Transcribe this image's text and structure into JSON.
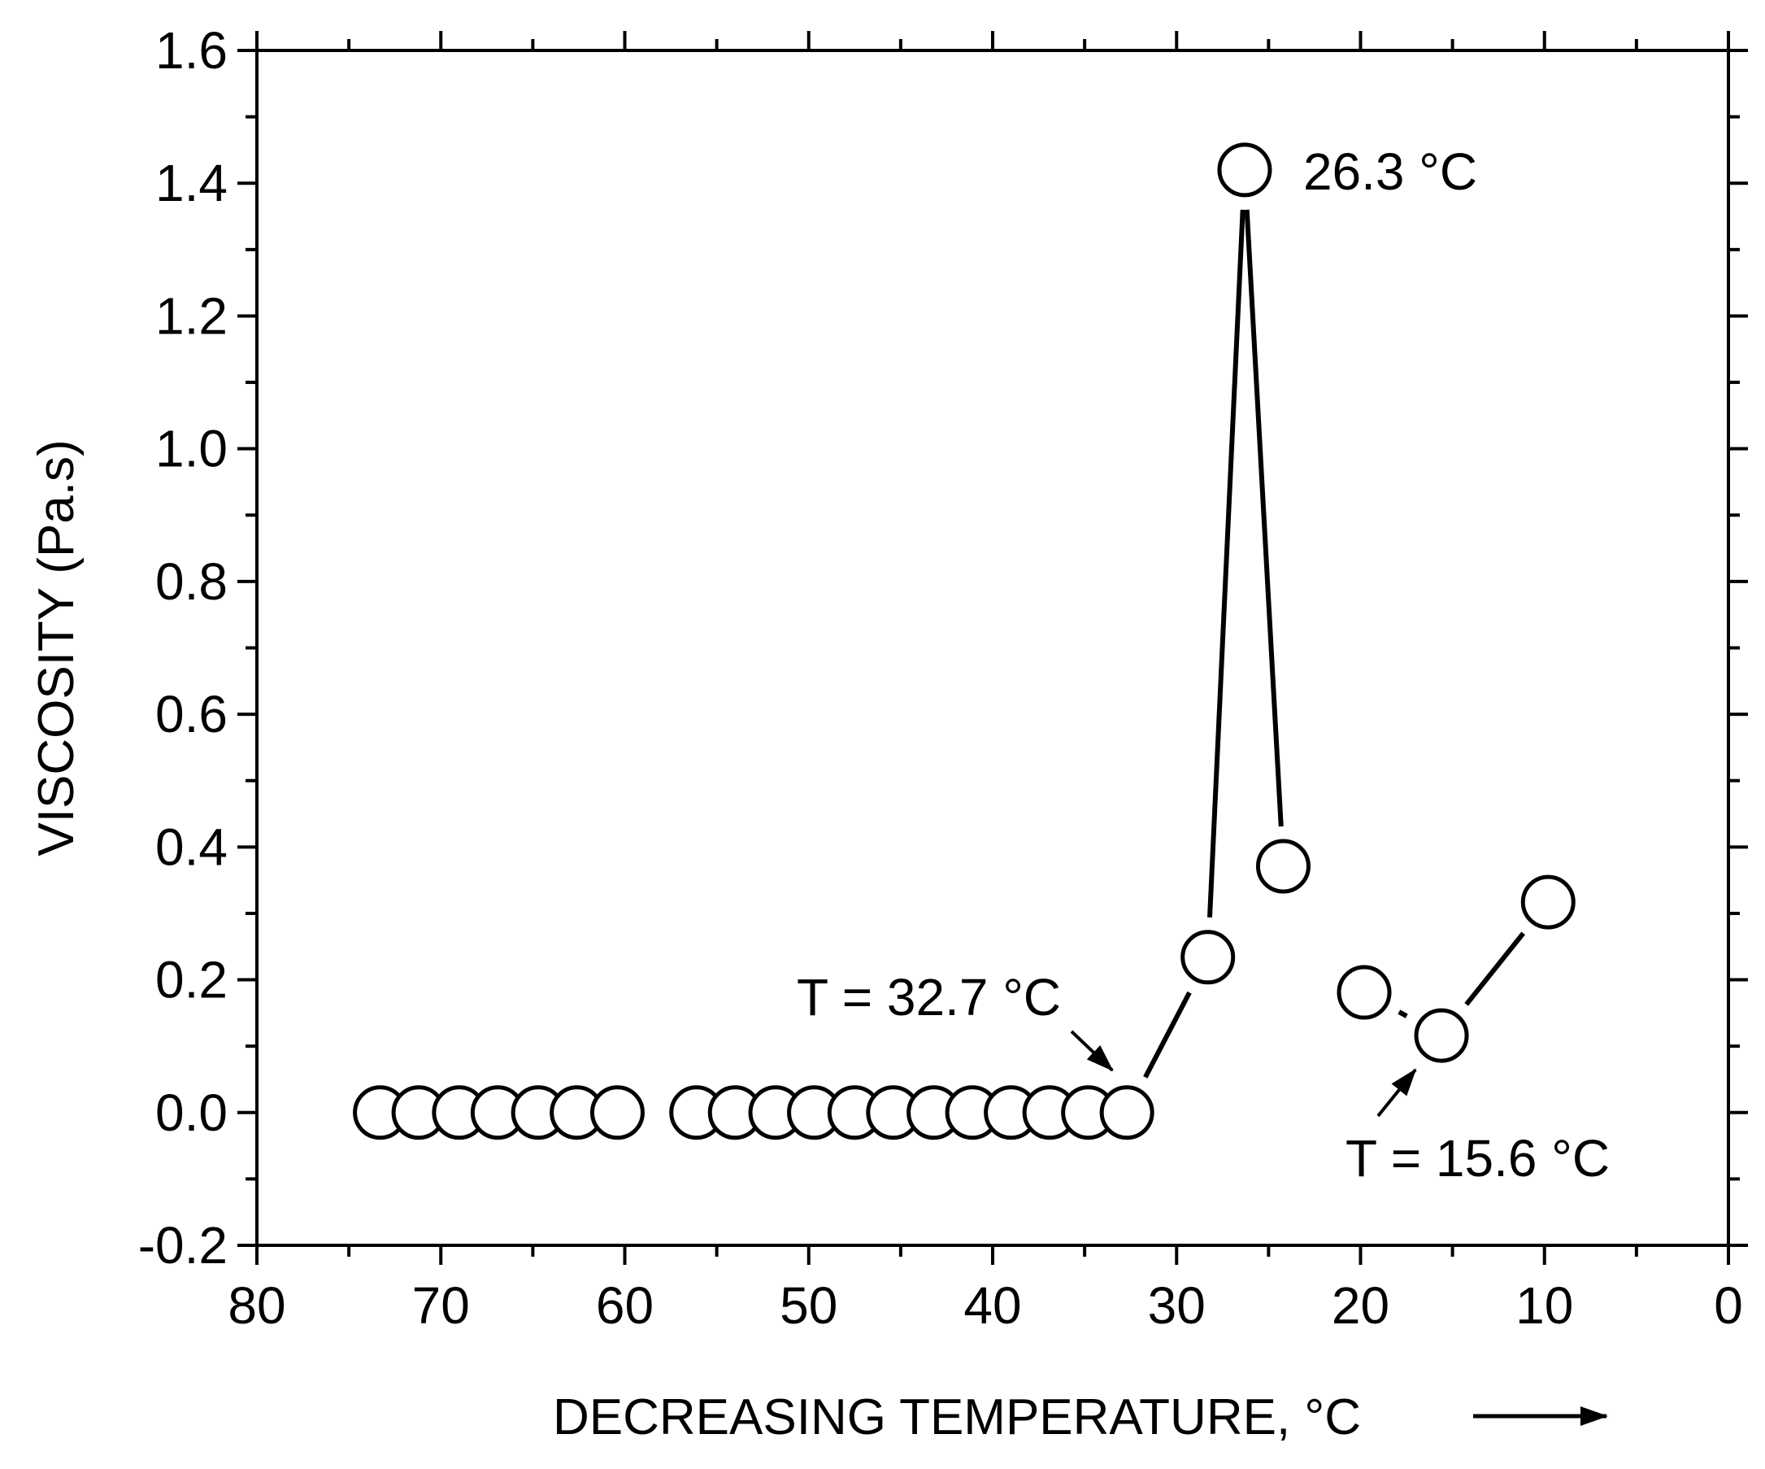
{
  "chart_data": {
    "type": "scatter",
    "xlabel": "DECREASING TEMPERATURE, °C",
    "ylabel": "VISCOSITY (Pa.s)",
    "xlim": [
      80,
      0
    ],
    "ylim": [
      -0.2,
      1.6
    ],
    "x_ticks": [
      "80",
      "70",
      "60",
      "50",
      "40",
      "30",
      "20",
      "10",
      "0"
    ],
    "y_ticks": [
      "-0.2",
      "0.0",
      "0.2",
      "0.4",
      "0.6",
      "0.8",
      "1.0",
      "1.2",
      "1.4",
      "1.6"
    ],
    "x_tick_values": [
      80,
      70,
      60,
      50,
      40,
      30,
      20,
      10,
      0
    ],
    "y_tick_values": [
      -0.2,
      0.0,
      0.2,
      0.4,
      0.6,
      0.8,
      1.0,
      1.2,
      1.4,
      1.6
    ],
    "grid": false,
    "points": [
      {
        "x": 73.3,
        "y": 0.0
      },
      {
        "x": 71.2,
        "y": 0.0
      },
      {
        "x": 69.0,
        "y": 0.0
      },
      {
        "x": 66.9,
        "y": 0.0
      },
      {
        "x": 64.7,
        "y": 0.0
      },
      {
        "x": 62.6,
        "y": 0.0
      },
      {
        "x": 60.4,
        "y": 0.0
      },
      {
        "x": 56.1,
        "y": 0.0
      },
      {
        "x": 54.0,
        "y": 0.0
      },
      {
        "x": 51.8,
        "y": 0.0
      },
      {
        "x": 49.7,
        "y": 0.0
      },
      {
        "x": 47.5,
        "y": 0.0
      },
      {
        "x": 45.4,
        "y": 0.0
      },
      {
        "x": 43.2,
        "y": 0.0
      },
      {
        "x": 41.1,
        "y": 0.0
      },
      {
        "x": 39.0,
        "y": 0.0
      },
      {
        "x": 36.9,
        "y": 0.0
      },
      {
        "x": 34.8,
        "y": 0.0
      },
      {
        "x": 32.7,
        "y": 0.0
      },
      {
        "x": 28.3,
        "y": 0.234
      },
      {
        "x": 26.3,
        "y": 1.42
      },
      {
        "x": 24.2,
        "y": 0.371
      },
      {
        "x": 19.8,
        "y": 0.181
      },
      {
        "x": 15.6,
        "y": 0.116
      },
      {
        "x": 9.8,
        "y": 0.317
      }
    ],
    "line_segments": [
      [
        32.7,
        0.0,
        28.3,
        0.234
      ],
      [
        28.3,
        0.234,
        26.3,
        1.42
      ],
      [
        26.3,
        1.42,
        24.2,
        0.371
      ],
      [
        19.8,
        0.181,
        15.6,
        0.116
      ],
      [
        15.6,
        0.116,
        9.8,
        0.317
      ]
    ],
    "annotations": [
      {
        "text": "26.3 °C",
        "x": 26.3,
        "y": 1.42
      },
      {
        "text": "T = 32.7 °C",
        "x": 32.7,
        "y": 0.0
      },
      {
        "text": "T = 15.6 °C",
        "x": 15.6,
        "y": 0.116
      }
    ]
  }
}
